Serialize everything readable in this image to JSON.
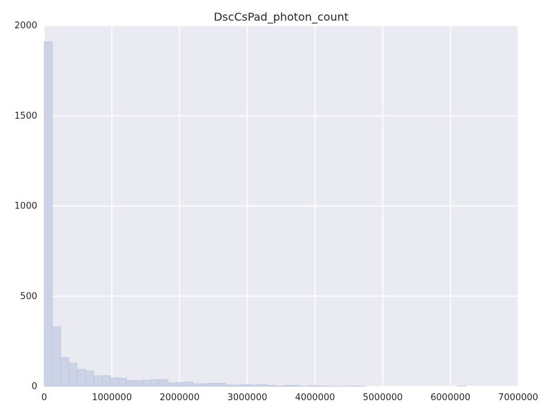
{
  "chart_data": {
    "type": "bar",
    "title": "DscCsPad_photon_count",
    "xlabel": "",
    "ylabel": "",
    "xlim": [
      0,
      7000000
    ],
    "ylim": [
      0,
      2000
    ],
    "grid": true,
    "background": "#eaeaf2",
    "grid_color": "#ffffff",
    "bar_color": "#ccd3e6",
    "bar_edge_color": "#b7c0d8",
    "x_ticks": [
      0,
      1000000,
      2000000,
      3000000,
      4000000,
      5000000,
      6000000,
      7000000
    ],
    "x_tick_labels": [
      "0",
      "1000000",
      "2000000",
      "3000000",
      "4000000",
      "5000000",
      "6000000",
      "7000000"
    ],
    "y_ticks": [
      0,
      500,
      1000,
      1500,
      2000
    ],
    "y_tick_labels": [
      "0",
      "500",
      "1000",
      "1500",
      "2000"
    ],
    "bin_width": 122000,
    "bin_edges_start": 0,
    "values": [
      1910,
      330,
      160,
      130,
      95,
      85,
      58,
      60,
      48,
      45,
      33,
      33,
      35,
      38,
      38,
      20,
      22,
      25,
      15,
      15,
      18,
      18,
      8,
      8,
      10,
      8,
      10,
      6,
      3,
      6,
      6,
      1,
      5,
      2,
      1,
      1,
      1,
      3,
      1,
      0,
      0,
      0,
      0,
      0,
      0,
      0,
      0,
      0,
      0,
      0,
      1,
      0,
      0,
      0,
      0,
      0,
      0
    ]
  }
}
